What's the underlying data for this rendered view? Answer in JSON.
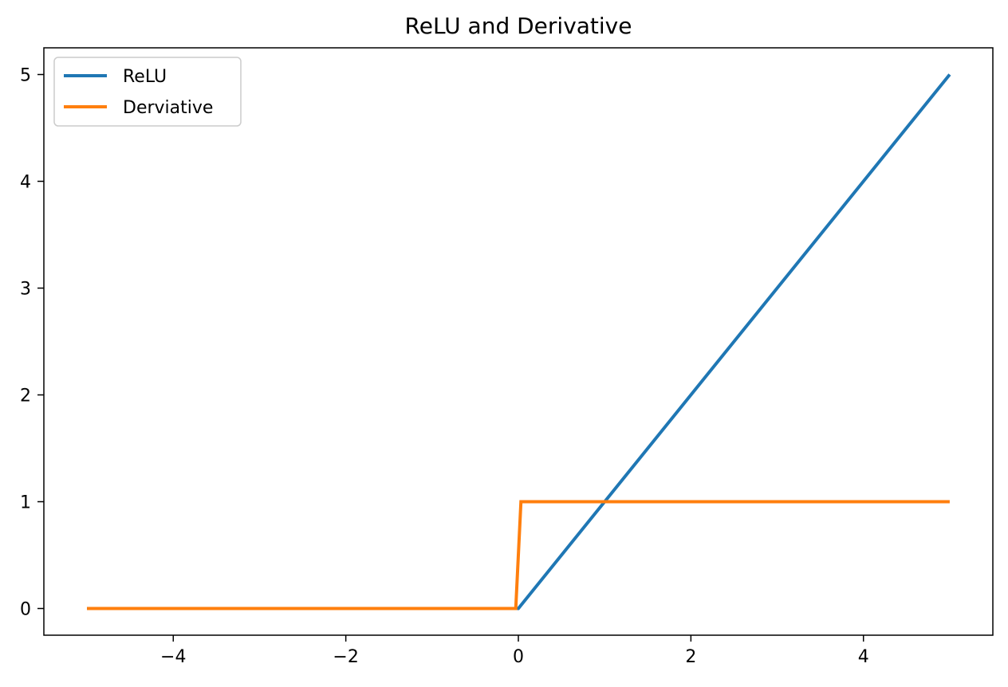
{
  "chart_data": {
    "type": "line",
    "title": "ReLU and Derivative",
    "xlabel": "",
    "ylabel": "",
    "xlim": [
      -5.5,
      5.5
    ],
    "ylim": [
      -0.25,
      5.25
    ],
    "xticks": [
      -4,
      -2,
      0,
      2,
      4
    ],
    "xtick_labels": [
      "−4",
      "−2",
      "0",
      "2",
      "4"
    ],
    "yticks": [
      0,
      1,
      2,
      3,
      4,
      5
    ],
    "ytick_labels": [
      "0",
      "1",
      "2",
      "3",
      "4",
      "5"
    ],
    "grid": false,
    "legend": "upper-left",
    "series": [
      {
        "name": "ReLU",
        "color": "#1f77b4",
        "x": [
          -5,
          0,
          5
        ],
        "y": [
          0,
          0,
          5
        ]
      },
      {
        "name": "Derviative",
        "color": "#ff7f0e",
        "x": [
          -5,
          -0.03,
          0.03,
          5
        ],
        "y": [
          0,
          0,
          1,
          1
        ]
      }
    ]
  }
}
